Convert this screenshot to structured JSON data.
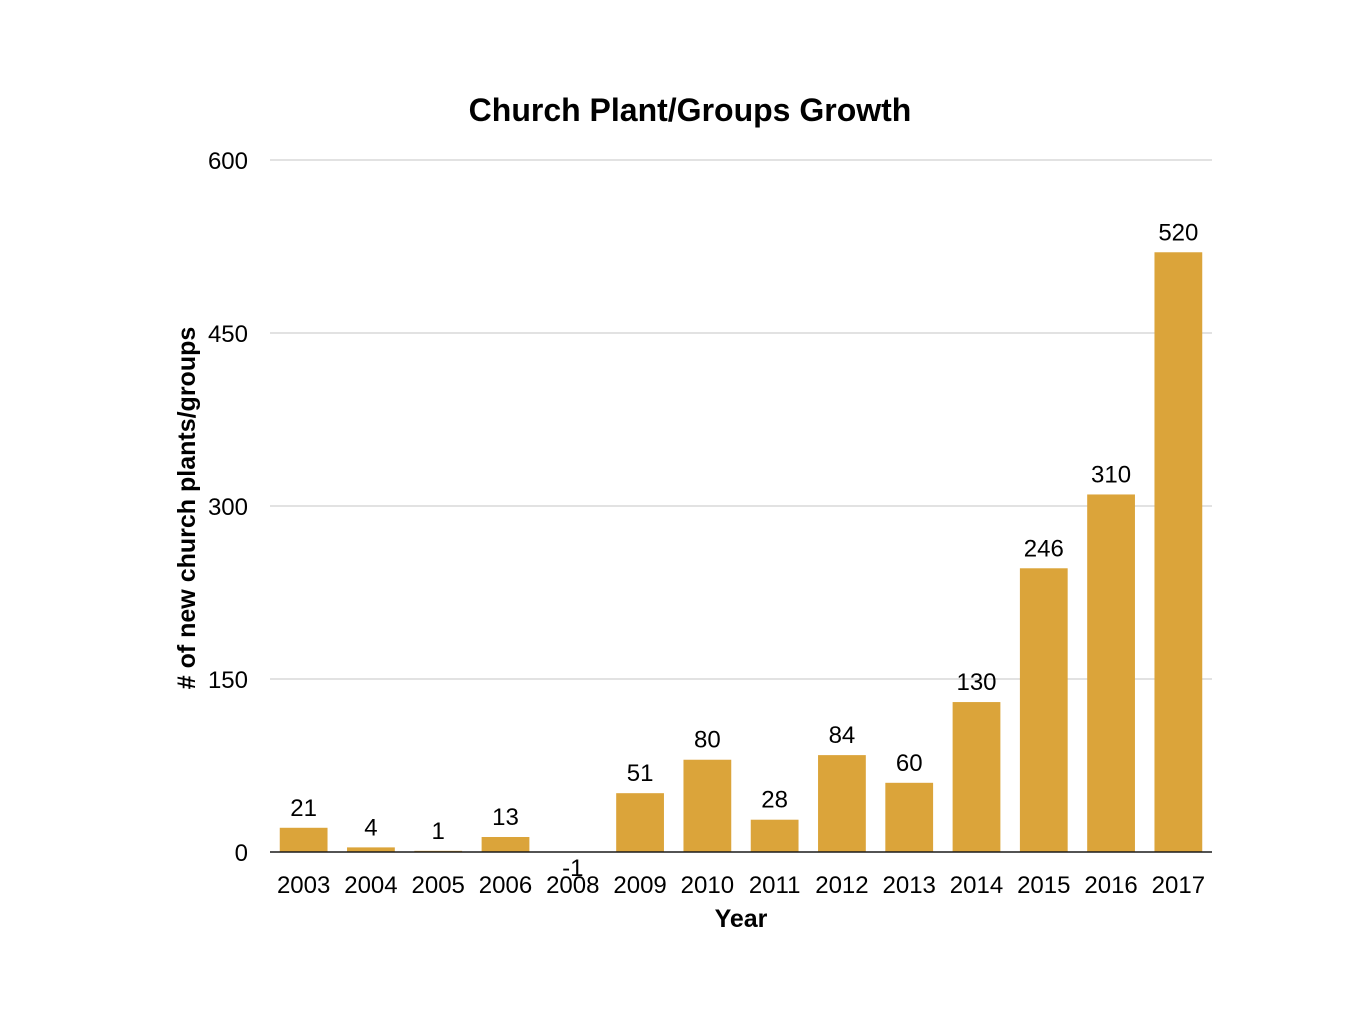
{
  "chart_data": {
    "type": "bar",
    "title": "Church Plant/Groups Growth",
    "xlabel": "Year",
    "ylabel": "# of new church plants/groups",
    "categories": [
      "2003",
      "2004",
      "2005",
      "2006",
      "2008",
      "2009",
      "2010",
      "2011",
      "2012",
      "2013",
      "2014",
      "2015",
      "2016",
      "2017"
    ],
    "values": [
      21,
      4,
      1,
      13,
      -1,
      51,
      80,
      28,
      84,
      60,
      130,
      246,
      310,
      520
    ],
    "data_labels": [
      "21",
      "4",
      "1",
      "13",
      "-1",
      "51",
      "80",
      "28",
      "84",
      "60",
      "130",
      "246",
      "310",
      "520"
    ],
    "y_ticks": [
      0,
      150,
      300,
      450,
      600
    ],
    "y_tick_labels": [
      "0",
      "150",
      "300",
      "450",
      "600"
    ],
    "ylim": [
      0,
      600
    ],
    "grid": true,
    "legend": "none",
    "bar_color": "#dba43a"
  }
}
